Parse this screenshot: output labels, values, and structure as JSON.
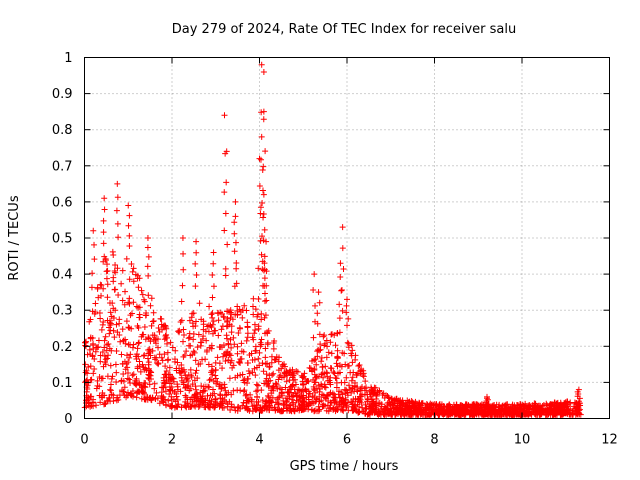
{
  "chart_data": {
    "type": "scatter",
    "title": "Day 279 of 2024, Rate Of TEC Index for receiver salu",
    "xlabel": "GPS time / hours",
    "ylabel": "ROTI / TECUs",
    "xlim": [
      0,
      12
    ],
    "ylim": [
      0,
      1
    ],
    "xticks": [
      0,
      2,
      4,
      6,
      8,
      10,
      12
    ],
    "yticks": [
      0,
      0.1,
      0.2,
      0.3,
      0.4,
      0.5,
      0.6,
      0.7,
      0.8,
      0.9,
      1
    ],
    "xtick_labels": [
      "0",
      "2",
      "4",
      "6",
      "8",
      "10",
      "12"
    ],
    "ytick_labels": [
      "0",
      "0.1",
      "0.2",
      "0.3",
      "0.4",
      "0.5",
      "0.6",
      "0.7",
      "0.8",
      "0.9",
      "1"
    ],
    "grid": true,
    "marker": "+",
    "color": "#ff0000",
    "series": [
      {
        "name": "ROTI",
        "x_range": [
          0,
          11.35
        ],
        "envelope": [
          {
            "x": 0.0,
            "low": 0.03,
            "high": 0.22
          },
          {
            "x": 0.5,
            "low": 0.04,
            "high": 0.48
          },
          {
            "x": 1.0,
            "low": 0.06,
            "high": 0.45
          },
          {
            "x": 1.5,
            "low": 0.05,
            "high": 0.36
          },
          {
            "x": 2.0,
            "low": 0.03,
            "high": 0.22
          },
          {
            "x": 2.5,
            "low": 0.03,
            "high": 0.34
          },
          {
            "x": 3.0,
            "low": 0.03,
            "high": 0.3
          },
          {
            "x": 3.5,
            "low": 0.02,
            "high": 0.32
          },
          {
            "x": 4.0,
            "low": 0.02,
            "high": 0.34
          },
          {
            "x": 4.5,
            "low": 0.02,
            "high": 0.16
          },
          {
            "x": 5.0,
            "low": 0.02,
            "high": 0.12
          },
          {
            "x": 5.5,
            "low": 0.02,
            "high": 0.24
          },
          {
            "x": 6.0,
            "low": 0.02,
            "high": 0.24
          },
          {
            "x": 6.5,
            "low": 0.01,
            "high": 0.1
          },
          {
            "x": 7.0,
            "low": 0.01,
            "high": 0.06
          },
          {
            "x": 8.0,
            "low": 0.01,
            "high": 0.04
          },
          {
            "x": 9.0,
            "low": 0.01,
            "high": 0.04
          },
          {
            "x": 10.0,
            "low": 0.01,
            "high": 0.04
          },
          {
            "x": 11.35,
            "low": 0.01,
            "high": 0.05
          }
        ],
        "peaks": [
          [
            0.2,
            0.52
          ],
          [
            0.45,
            0.61
          ],
          [
            0.75,
            0.65
          ],
          [
            1.0,
            0.59
          ],
          [
            1.45,
            0.5
          ],
          [
            2.25,
            0.5
          ],
          [
            2.55,
            0.49
          ],
          [
            2.95,
            0.46
          ],
          [
            3.2,
            0.84
          ],
          [
            3.25,
            0.74
          ],
          [
            3.45,
            0.56
          ],
          [
            3.45,
            0.6
          ],
          [
            4.05,
            0.98
          ],
          [
            4.1,
            0.96
          ],
          [
            4.1,
            0.85
          ],
          [
            4.05,
            0.78
          ],
          [
            4.0,
            0.72
          ],
          [
            4.1,
            0.62
          ],
          [
            4.15,
            0.49
          ],
          [
            4.1,
            0.41
          ],
          [
            5.25,
            0.4
          ],
          [
            5.35,
            0.35
          ],
          [
            5.9,
            0.53
          ],
          [
            5.85,
            0.43
          ],
          [
            6.0,
            0.33
          ],
          [
            9.2,
            0.06
          ],
          [
            11.3,
            0.08
          ]
        ]
      }
    ]
  }
}
